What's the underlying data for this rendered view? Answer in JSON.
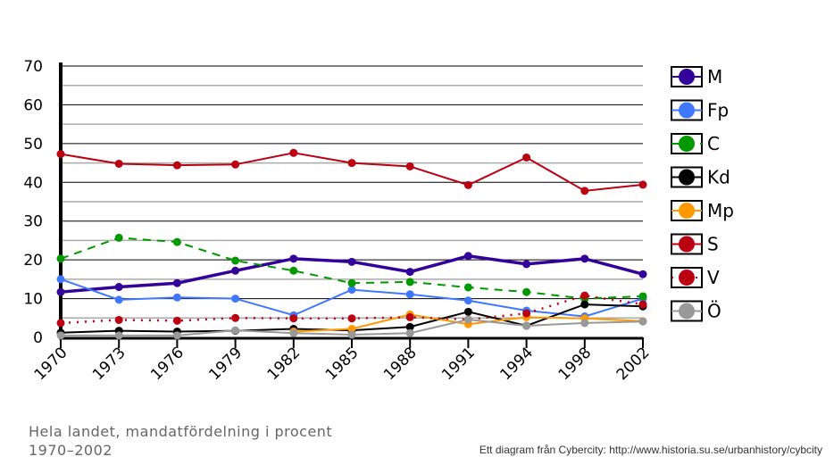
{
  "chart_data": {
    "type": "line",
    "title": "Hela landet, mandatfördelning i procent",
    "subtitle": "1970–2002",
    "source": "Ett diagram från Cybercity: http://www.historia.su.se/urbanhistory/cybcity",
    "categories": [
      "1970",
      "1973",
      "1976",
      "1979",
      "1982",
      "1985",
      "1988",
      "1991",
      "1994",
      "1998",
      "2002"
    ],
    "ylim": [
      0,
      70
    ],
    "yticks": [
      "0",
      "10",
      "20",
      "30",
      "40",
      "50",
      "60",
      "70"
    ],
    "grid": true,
    "legend": "right",
    "series": [
      {
        "name": "M",
        "color": "#330099",
        "style": "solid-thick",
        "values": [
          11.7,
          13.0,
          14.0,
          17.2,
          20.3,
          19.5,
          16.9,
          21.0,
          18.9,
          20.3,
          16.3
        ]
      },
      {
        "name": "Fp",
        "color": "#3f78ff",
        "style": "solid",
        "values": [
          15.0,
          9.7,
          10.3,
          10.0,
          5.7,
          12.3,
          11.1,
          9.5,
          6.9,
          5.4,
          10.0
        ]
      },
      {
        "name": "C",
        "color": "#009900",
        "style": "dashed",
        "values": [
          20.3,
          25.7,
          24.6,
          19.8,
          17.2,
          14.0,
          14.3,
          12.9,
          11.7,
          10.0,
          10.6
        ]
      },
      {
        "name": "Kd",
        "color": "#000000",
        "style": "solid",
        "values": [
          1.2,
          1.7,
          1.5,
          1.7,
          2.2,
          1.8,
          2.7,
          6.6,
          3.0,
          8.5,
          8.0
        ]
      },
      {
        "name": "Mp",
        "color": "#ff9900",
        "style": "solid",
        "values": [
          null,
          null,
          null,
          null,
          1.5,
          2.2,
          5.9,
          3.4,
          5.2,
          4.9,
          4.2
        ]
      },
      {
        "name": "S",
        "color": "#bb0011",
        "style": "solid",
        "values": [
          47.3,
          44.8,
          44.4,
          44.6,
          47.6,
          45.0,
          44.1,
          39.3,
          46.4,
          37.8,
          39.4
        ]
      },
      {
        "name": "V",
        "color": "#bb0011",
        "style": "dotted",
        "values": [
          3.7,
          4.5,
          4.3,
          5.0,
          4.9,
          4.9,
          5.2,
          4.6,
          6.2,
          10.8,
          8.5
        ]
      },
      {
        "name": "Ö",
        "color": "#999999",
        "style": "solid",
        "values": [
          0.5,
          0.5,
          0.5,
          1.8,
          1.1,
          0.7,
          1.1,
          4.6,
          3.0,
          3.7,
          4.1
        ]
      }
    ]
  }
}
